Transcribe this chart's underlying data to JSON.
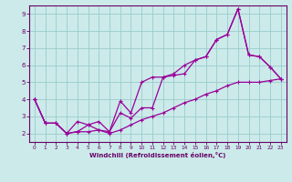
{
  "xlabel": "Windchill (Refroidissement éolien,°C)",
  "bg_color": "#cceaea",
  "line_color": "#990099",
  "grid_color": "#99cccc",
  "axis_color": "#660066",
  "tick_color": "#660066",
  "xlim": [
    -0.5,
    23.5
  ],
  "ylim": [
    1.5,
    9.5
  ],
  "xticks": [
    0,
    1,
    2,
    3,
    4,
    5,
    6,
    7,
    8,
    9,
    10,
    11,
    12,
    13,
    14,
    15,
    16,
    17,
    18,
    19,
    20,
    21,
    22,
    23
  ],
  "yticks": [
    2,
    3,
    4,
    5,
    6,
    7,
    8,
    9
  ],
  "line1_x": [
    0,
    1,
    2,
    3,
    4,
    5,
    6,
    7,
    8,
    9,
    10,
    11,
    12,
    13,
    14,
    15,
    16,
    17,
    18,
    19,
    20,
    21,
    22,
    23
  ],
  "line1_y": [
    4.0,
    2.6,
    2.6,
    2.0,
    2.1,
    2.5,
    2.2,
    2.1,
    3.9,
    3.2,
    5.0,
    5.3,
    5.3,
    5.5,
    6.0,
    6.3,
    6.5,
    7.5,
    7.8,
    9.3,
    6.6,
    6.5,
    5.9,
    5.2
  ],
  "line2_x": [
    0,
    1,
    2,
    3,
    4,
    5,
    6,
    7,
    8,
    9,
    10,
    11,
    12,
    13,
    14,
    15,
    16,
    17,
    18,
    19,
    20,
    21,
    22,
    23
  ],
  "line2_y": [
    4.0,
    2.6,
    2.6,
    2.0,
    2.7,
    2.5,
    2.7,
    2.1,
    3.2,
    2.9,
    3.5,
    3.5,
    5.3,
    5.4,
    5.5,
    6.3,
    6.5,
    7.5,
    7.8,
    9.3,
    6.6,
    6.5,
    5.9,
    5.2
  ],
  "line3_x": [
    0,
    1,
    2,
    3,
    4,
    5,
    6,
    7,
    8,
    9,
    10,
    11,
    12,
    13,
    14,
    15,
    16,
    17,
    18,
    19,
    20,
    21,
    22,
    23
  ],
  "line3_y": [
    4.0,
    2.6,
    2.6,
    2.0,
    2.1,
    2.1,
    2.2,
    2.0,
    2.2,
    2.5,
    2.8,
    3.0,
    3.2,
    3.5,
    3.8,
    4.0,
    4.3,
    4.5,
    4.8,
    5.0,
    5.0,
    5.0,
    5.1,
    5.2
  ]
}
